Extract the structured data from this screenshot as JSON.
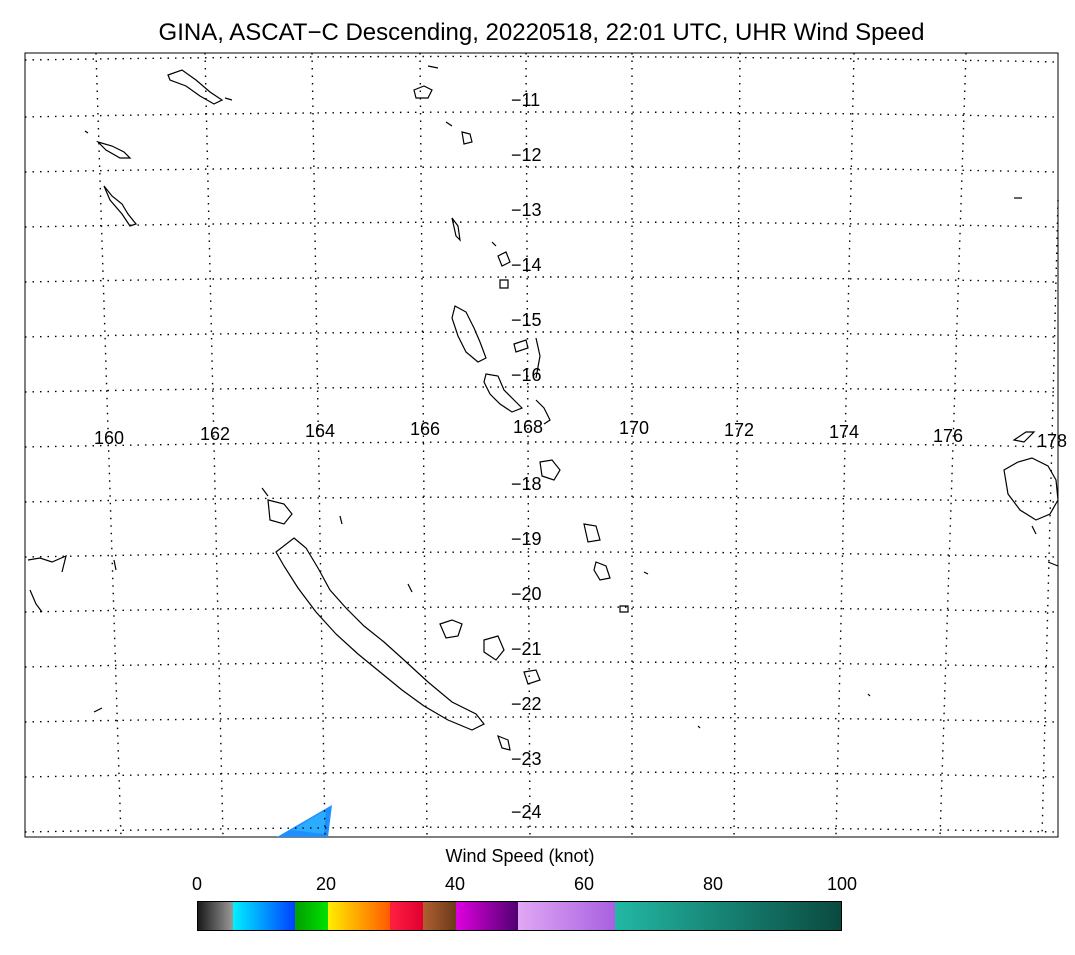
{
  "title": "GINA, ASCAT−C Descending, 20220518, 22:01 UTC, UHR Wind Speed",
  "map": {
    "lon_labels": [
      "160",
      "162",
      "164",
      "166",
      "168",
      "170",
      "172",
      "174",
      "176",
      "178"
    ],
    "lat_labels": [
      "−11",
      "−12",
      "−13",
      "−14",
      "−15",
      "−16",
      "−18",
      "−19",
      "−20",
      "−21",
      "−22",
      "−23",
      "−24"
    ],
    "grid": "dotted"
  },
  "colorbar": {
    "label": "Wind Speed (knot)",
    "ticks": [
      "0",
      "20",
      "40",
      "60",
      "80",
      "100"
    ],
    "min": 0,
    "max": 100,
    "colors": [
      "#3c3c3c",
      "#00e5ff",
      "#0070ff",
      "#00c800",
      "#ffd400",
      "#ff7a00",
      "#ff1e3c",
      "#a0522d",
      "#c000c0",
      "#7a0090",
      "#d8a0f0",
      "#b070e0",
      "#20b0a0",
      "#107060"
    ]
  }
}
